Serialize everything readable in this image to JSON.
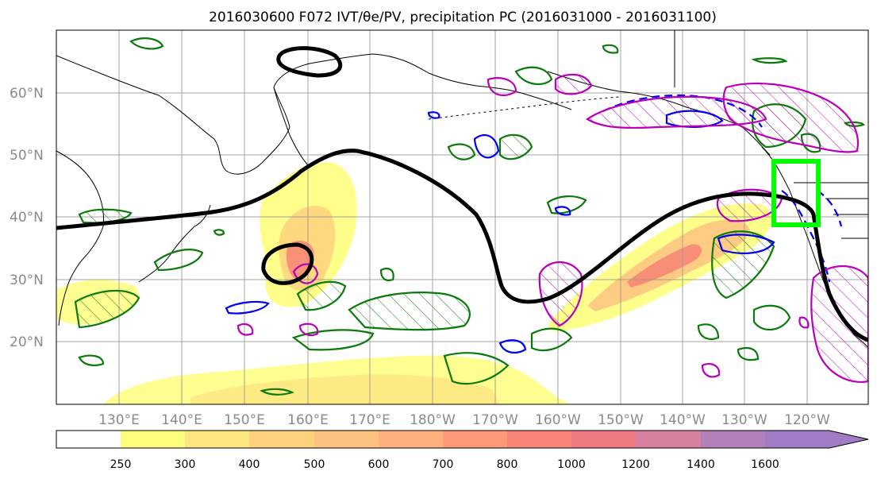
{
  "title": "2016030600 F072 IVT/θe/PV, precipitation PC (2016031000 - 2016031100)",
  "lat_labels": [
    "60°N",
    "50°N",
    "40°N",
    "30°N",
    "20°N"
  ],
  "lon_labels": [
    "130°E",
    "140°E",
    "150°E",
    "160°E",
    "170°E",
    "180°W",
    "170°W",
    "160°W",
    "150°W",
    "140°W",
    "130°W",
    "120°W"
  ],
  "colorbar": {
    "ticks": [
      "250",
      "300",
      "400",
      "500",
      "600",
      "700",
      "800",
      "1000",
      "1200",
      "1400",
      "1600"
    ],
    "colors": [
      "#ffffff",
      "#fefe7e",
      "#fee680",
      "#fed27c",
      "#fec280",
      "#feb07c",
      "#fe9a7a",
      "#f88477",
      "#ee7a80",
      "#d880a0",
      "#b27fb9",
      "#a07cc6"
    ]
  },
  "colors": {
    "ivt_contour": "#000000",
    "green_contour": "#0a7a0a",
    "blue_contour": "#0000ee",
    "magenta_contour": "#b800b8",
    "box": "#00ff00",
    "grid": "#9a9a9a"
  }
}
